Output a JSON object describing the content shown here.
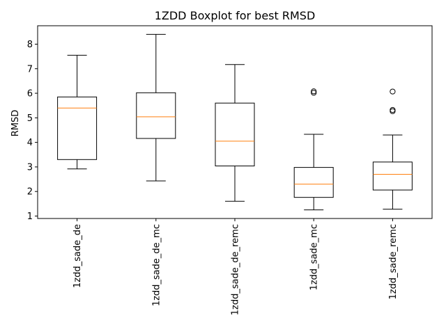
{
  "chart_data": {
    "type": "box",
    "title": "1ZDD Boxplot for best RMSD",
    "xlabel": "",
    "ylabel": "RMSD",
    "ylim": [
      0.9,
      8.75
    ],
    "yticks": [
      1,
      2,
      3,
      4,
      5,
      6,
      7,
      8
    ],
    "grid": false,
    "categories": [
      "1zdd_sade_de",
      "1zdd_sade_de_mc",
      "1zdd_sade_de_remc",
      "1zdd_sade_mc",
      "1zdd_sade_remc"
    ],
    "boxes": [
      {
        "category": "1zdd_sade_de",
        "whisker_low": 2.92,
        "q1": 3.3,
        "median": 5.4,
        "q3": 5.85,
        "whisker_high": 7.55,
        "outliers": []
      },
      {
        "category": "1zdd_sade_de_mc",
        "whisker_low": 2.43,
        "q1": 4.16,
        "median": 5.04,
        "q3": 6.02,
        "whisker_high": 8.4,
        "outliers": []
      },
      {
        "category": "1zdd_sade_de_remc",
        "whisker_low": 1.6,
        "q1": 3.04,
        "median": 4.05,
        "q3": 5.6,
        "whisker_high": 7.17,
        "outliers": []
      },
      {
        "category": "1zdd_sade_mc",
        "whisker_low": 1.25,
        "q1": 1.76,
        "median": 2.3,
        "q3": 2.98,
        "whisker_high": 4.33,
        "outliers": [
          6.02,
          6.08
        ]
      },
      {
        "category": "1zdd_sade_remc",
        "whisker_low": 1.28,
        "q1": 2.06,
        "median": 2.7,
        "q3": 3.2,
        "whisker_high": 4.3,
        "outliers": [
          5.27,
          5.32,
          6.07
        ]
      }
    ],
    "colors": {
      "box": "#000000",
      "median": "#ff7f0e",
      "background": "#ffffff"
    }
  }
}
